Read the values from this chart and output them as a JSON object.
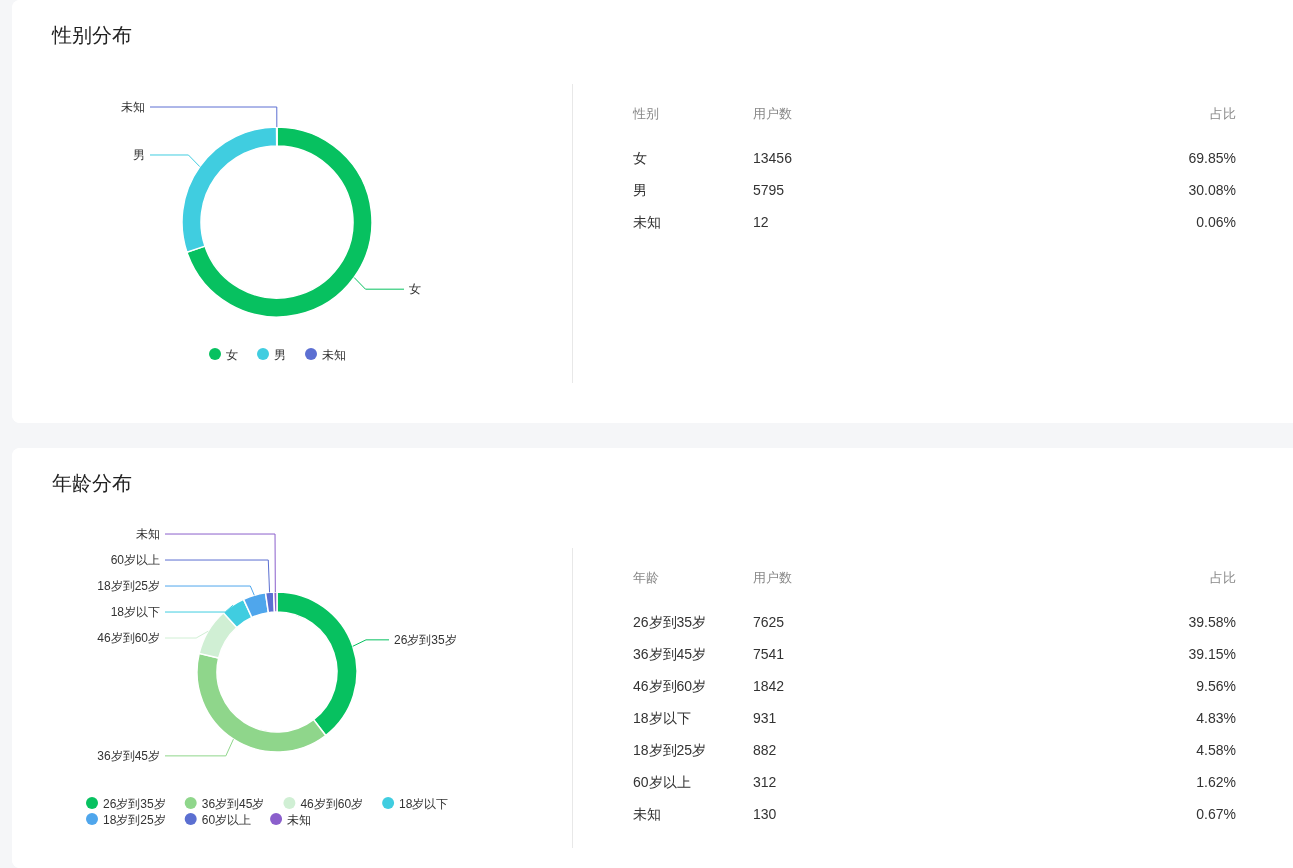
{
  "chart_data": [
    {
      "type": "donut",
      "title": "性别分布",
      "categories": [
        "女",
        "男",
        "未知"
      ],
      "values": [
        69.85,
        30.08,
        0.06
      ],
      "colors": [
        "#07c160",
        "#40cde0",
        "#5c6fd2"
      ],
      "legend": "bottom"
    },
    {
      "type": "other",
      "categories": [
        "女",
        "男",
        "未知"
      ],
      "values": [
        13456,
        5795,
        12
      ],
      "data_labels": true,
      "annotations": [
        "性别",
        "用户数",
        "占比",
        "69.85%",
        "30.08%",
        "0.06%"
      ]
    },
    {
      "type": "donut",
      "title": "年龄分布",
      "categories": [
        "26岁到35岁",
        "36岁到45岁",
        "46岁到60岁",
        "18岁以下",
        "18岁到25岁",
        "60岁以上",
        "未知"
      ],
      "values": [
        39.58,
        39.15,
        9.56,
        4.83,
        4.58,
        1.62,
        0.67
      ],
      "colors": [
        "#07c160",
        "#8fd68b",
        "#d0efd4",
        "#40cde0",
        "#4fa6ec",
        "#5b6fd1",
        "#8b5fcc"
      ],
      "legend": "bottom"
    },
    {
      "type": "other",
      "categories": [
        "26岁到35岁",
        "36岁到45岁",
        "46岁到60岁",
        "18岁以下",
        "18岁到25岁",
        "60岁以上",
        "未知"
      ],
      "values": [
        7625,
        7541,
        1842,
        931,
        882,
        312,
        130
      ],
      "data_labels": true,
      "annotations": [
        "年龄",
        "用户数",
        "占比",
        "39.58%",
        "39.15%",
        "9.56%",
        "4.83%",
        "4.58%",
        "1.62%",
        "0.67%"
      ]
    }
  ]
}
